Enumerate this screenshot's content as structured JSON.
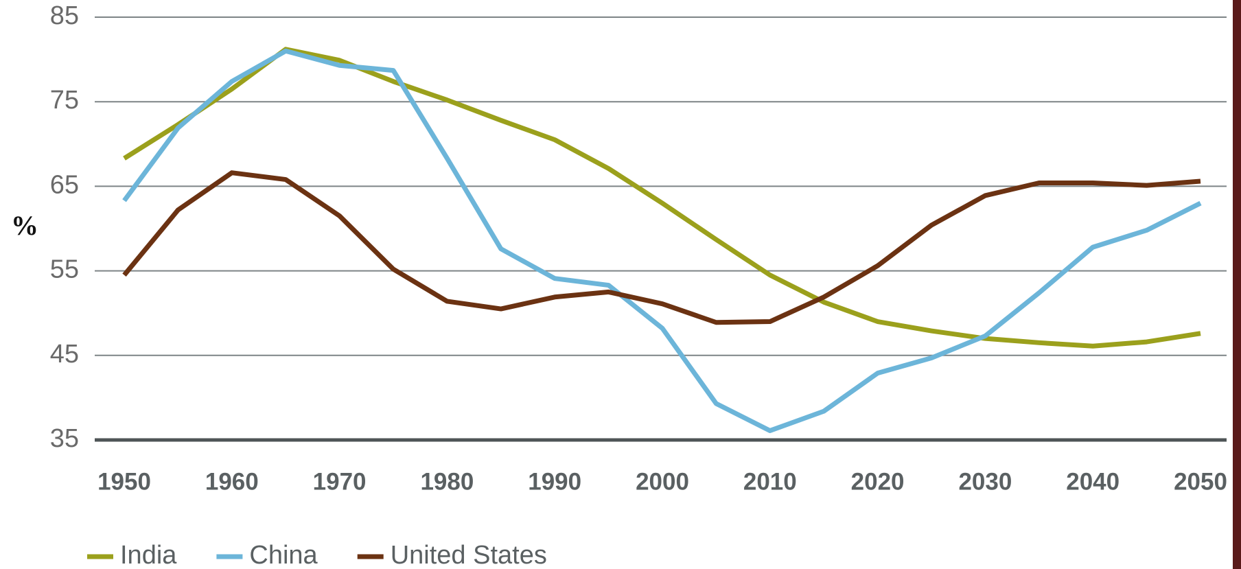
{
  "chart_data": {
    "type": "line",
    "y_label": "%",
    "x": [
      1950,
      1955,
      1960,
      1965,
      1970,
      1975,
      1980,
      1985,
      1990,
      1995,
      2000,
      2005,
      2010,
      2015,
      2020,
      2025,
      2030,
      2035,
      2040,
      2045,
      2050
    ],
    "series": [
      {
        "name": "India",
        "color": "#9ba01c",
        "values": [
          68.3,
          72.3,
          76.5,
          81.2,
          79.9,
          77.4,
          75.2,
          72.8,
          70.5,
          67.1,
          63.0,
          58.7,
          54.5,
          51.3,
          49.0,
          47.9,
          47.0,
          46.5,
          46.1,
          46.6,
          47.6
        ]
      },
      {
        "name": "China",
        "color": "#6cb5d9",
        "values": [
          63.3,
          71.9,
          77.4,
          81.0,
          79.3,
          78.7,
          68.3,
          57.6,
          54.1,
          53.3,
          48.2,
          39.3,
          36.1,
          38.4,
          42.9,
          44.7,
          47.3,
          52.4,
          57.8,
          59.8,
          63.0
        ]
      },
      {
        "name": "United States",
        "color": "#6b3212",
        "values": [
          54.5,
          62.2,
          66.6,
          65.8,
          61.5,
          55.2,
          51.4,
          50.5,
          51.9,
          52.5,
          51.1,
          48.9,
          49.0,
          51.9,
          55.6,
          60.4,
          63.9,
          65.4,
          65.4,
          65.1,
          65.6
        ]
      }
    ],
    "xlim": [
      1950,
      2050
    ],
    "xticks": [
      1950,
      1960,
      1970,
      1980,
      1990,
      2000,
      2010,
      2020,
      2030,
      2040,
      2050
    ],
    "ylim": [
      35,
      85
    ],
    "yticks": [
      35,
      45,
      55,
      65,
      75,
      85
    ],
    "grid": true,
    "legend": "bottom"
  }
}
